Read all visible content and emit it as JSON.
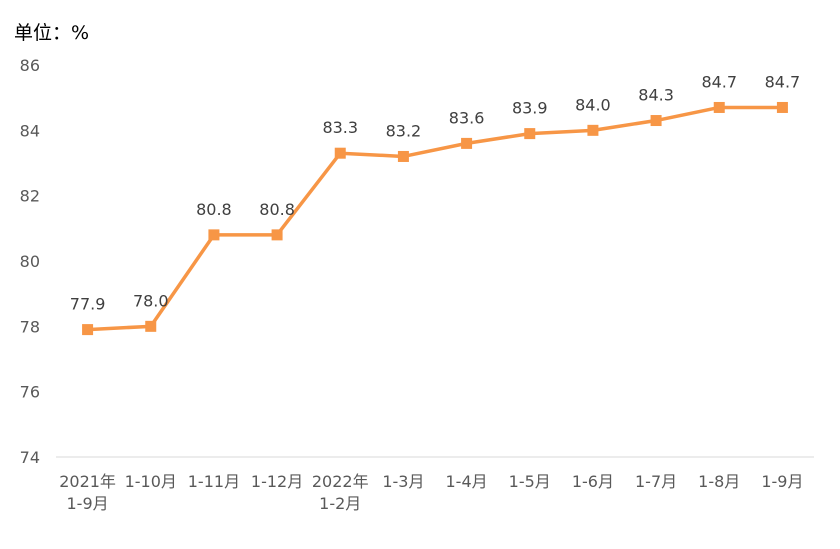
{
  "unit_label": "单位：%",
  "chart_data": {
    "type": "line",
    "title": "",
    "xlabel": "",
    "ylabel": "单位：%",
    "ylim": [
      74,
      86
    ],
    "yticks": [
      74,
      76,
      78,
      80,
      82,
      84,
      86
    ],
    "grid": false,
    "legend": "none",
    "categories": [
      [
        "2021年",
        "1-9月"
      ],
      [
        "1-10月"
      ],
      [
        "1-11月"
      ],
      [
        "1-12月"
      ],
      [
        "2022年",
        "1-2月"
      ],
      [
        "1-3月"
      ],
      [
        "1-4月"
      ],
      [
        "1-5月"
      ],
      [
        "1-6月"
      ],
      [
        "1-7月"
      ],
      [
        "1-8月"
      ],
      [
        "1-9月"
      ]
    ],
    "series": [
      {
        "values": [
          77.9,
          78.0,
          80.8,
          80.8,
          83.3,
          83.2,
          83.6,
          83.9,
          84.0,
          84.3,
          84.7,
          84.7
        ],
        "labels": [
          "77.9",
          "78.0",
          "80.8",
          "80.8",
          "83.3",
          "83.2",
          "83.6",
          "83.9",
          "84.0",
          "84.3",
          "84.7",
          "84.7"
        ],
        "color": "#F79646",
        "marker": "square"
      }
    ],
    "axis_color": "#D9D9D9"
  }
}
